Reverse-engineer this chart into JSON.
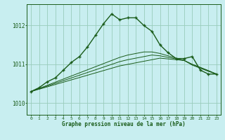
{
  "title": "Graphe pression niveau de la mer (hPa)",
  "bg_color": "#c8eef0",
  "grid_color": "#99ccbb",
  "line_color_dark": "#1a5c1a",
  "ylim": [
    1009.7,
    1012.55
  ],
  "yticks": [
    1010,
    1011,
    1012
  ],
  "xlim": [
    -0.5,
    23.5
  ],
  "xticks": [
    0,
    1,
    2,
    3,
    4,
    5,
    6,
    7,
    8,
    9,
    10,
    11,
    12,
    13,
    14,
    15,
    16,
    17,
    18,
    19,
    20,
    21,
    22,
    23
  ],
  "series_main": [
    1010.3,
    1010.4,
    1010.55,
    1010.65,
    1010.85,
    1011.05,
    1011.2,
    1011.45,
    1011.75,
    1012.05,
    1012.3,
    1012.15,
    1012.2,
    1012.2,
    1012.0,
    1011.85,
    1011.5,
    1011.3,
    1011.15,
    1011.15,
    1011.2,
    1010.85,
    1010.75,
    1010.75
  ],
  "series_trend1": [
    1010.3,
    1010.36,
    1010.42,
    1010.48,
    1010.54,
    1010.6,
    1010.66,
    1010.72,
    1010.78,
    1010.84,
    1010.9,
    1010.96,
    1011.0,
    1011.04,
    1011.08,
    1011.12,
    1011.16,
    1011.14,
    1011.12,
    1011.1,
    1010.98,
    1010.9,
    1010.82,
    1010.75
  ],
  "series_trend2": [
    1010.3,
    1010.37,
    1010.44,
    1010.51,
    1010.58,
    1010.65,
    1010.72,
    1010.79,
    1010.86,
    1010.93,
    1011.0,
    1011.07,
    1011.12,
    1011.16,
    1011.2,
    1011.24,
    1011.22,
    1011.18,
    1011.14,
    1011.1,
    1011.0,
    1010.92,
    1010.83,
    1010.75
  ],
  "series_trend3": [
    1010.3,
    1010.38,
    1010.46,
    1010.54,
    1010.62,
    1010.7,
    1010.78,
    1010.86,
    1010.94,
    1011.02,
    1011.1,
    1011.18,
    1011.24,
    1011.28,
    1011.32,
    1011.32,
    1011.28,
    1011.22,
    1011.16,
    1011.1,
    1011.0,
    1010.92,
    1010.84,
    1010.75
  ]
}
